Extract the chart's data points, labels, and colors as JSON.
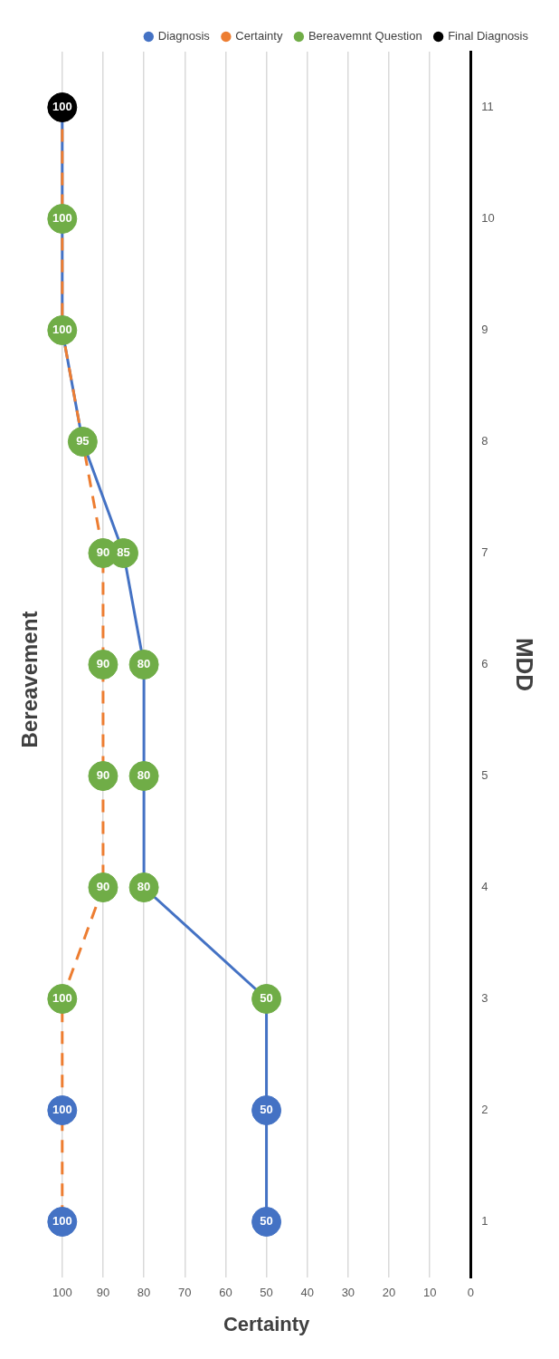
{
  "chart_data": {
    "type": "line",
    "title": "Bereavement",
    "xlabel": "Certainty",
    "ylabel": "MDD",
    "orientation": "horizontal",
    "categories": [
      "11",
      "10",
      "9",
      "8",
      "7",
      "6",
      "5",
      "4",
      "3",
      "2",
      "1"
    ],
    "series": [
      {
        "name": "Diagnosis",
        "color": "#4472c4",
        "line_style": "solid",
        "marker": "none",
        "values": [
          100,
          100,
          100,
          95,
          85,
          80,
          80,
          80,
          50,
          50,
          50
        ]
      },
      {
        "name": "Certainty",
        "color": "#ed7d31",
        "line_style": "dashed",
        "marker": "none",
        "values": [
          100,
          100,
          100,
          95,
          90,
          90,
          90,
          90,
          100,
          100,
          100
        ]
      },
      {
        "type": "scatter",
        "color": "#4472c4",
        "x": [
          "2",
          "2",
          "1",
          "1"
        ],
        "values": [
          100,
          50,
          100,
          50
        ],
        "value_labels": [
          "100",
          "50",
          "100",
          "50"
        ]
      },
      {
        "name": "Bereavemnt Question",
        "type": "scatter",
        "color": "#70ad47",
        "x": [
          "10",
          "9",
          "8",
          "7",
          "7",
          "6",
          "6",
          "5",
          "5",
          "4",
          "4",
          "3",
          "3"
        ],
        "values": [
          100,
          100,
          95,
          85,
          90,
          80,
          90,
          80,
          90,
          80,
          90,
          50,
          100
        ],
        "value_labels": [
          "100",
          "100",
          "95",
          "85",
          "90",
          "80",
          "90",
          "80",
          "90",
          "80",
          "90",
          "50",
          "100"
        ]
      },
      {
        "name": "Final Diagnosis",
        "type": "scatter",
        "color": "#000000",
        "x": [
          "11"
        ],
        "values": [
          100
        ],
        "value_labels": [
          "100"
        ]
      }
    ],
    "xlim": [
      100,
      0
    ],
    "xticks": [
      0,
      10,
      20,
      30,
      40,
      50,
      60,
      70,
      80,
      90,
      100
    ],
    "grid": "x",
    "legend": "top right",
    "marker": "circle"
  }
}
